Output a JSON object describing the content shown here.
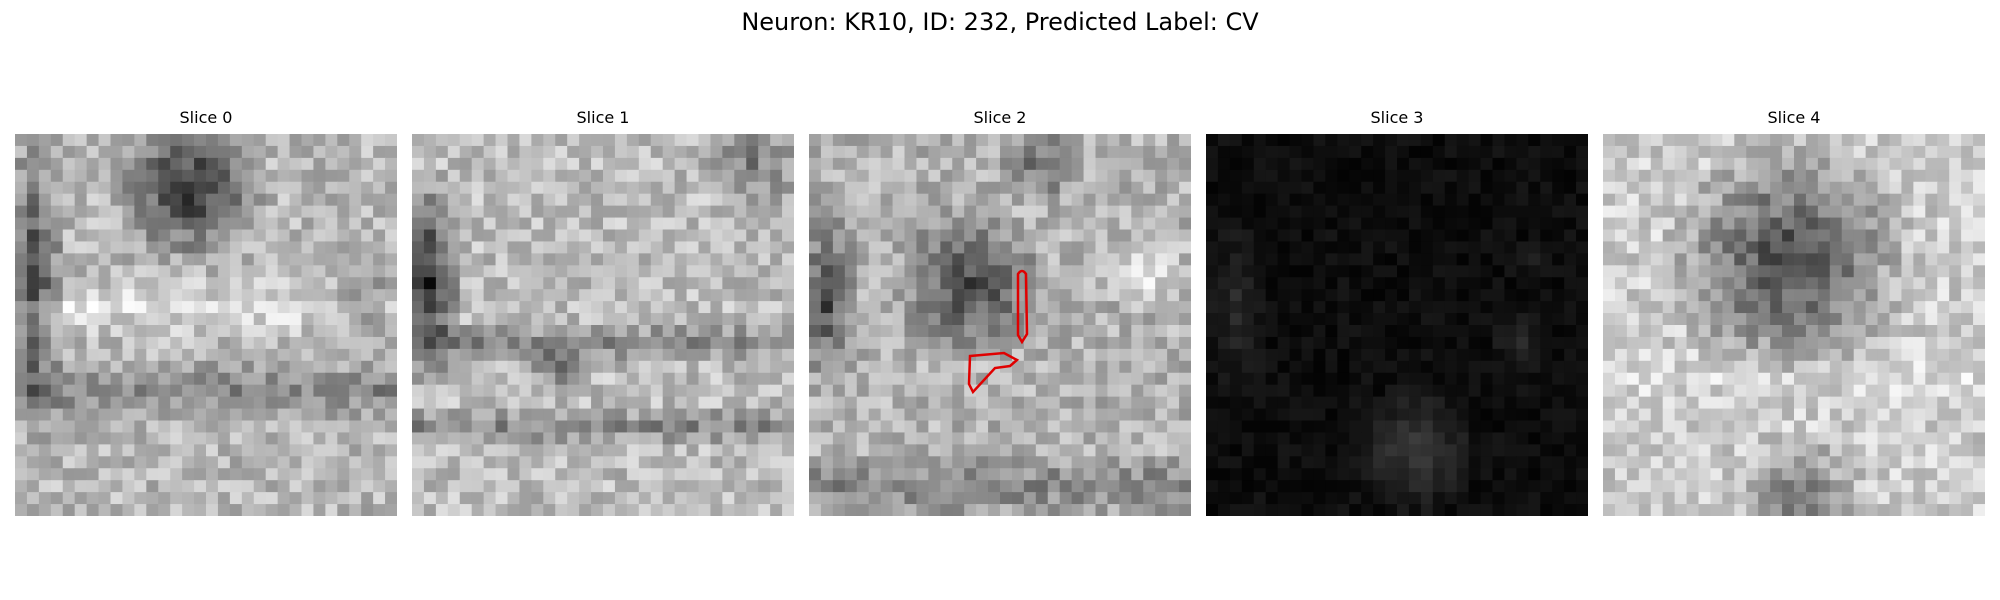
{
  "figure": {
    "title": "Neuron: KR10, ID: 232, Predicted Label: CV"
  },
  "panels": [
    {
      "label": "Slice 0",
      "seed": 11,
      "style": "light"
    },
    {
      "label": "Slice 1",
      "seed": 23,
      "style": "light"
    },
    {
      "label": "Slice 2",
      "seed": 37,
      "style": "light",
      "has_annotation": true
    },
    {
      "label": "Slice 3",
      "seed": 41,
      "style": "dark"
    },
    {
      "label": "Slice 4",
      "seed": 53,
      "style": "light"
    }
  ],
  "colors": {
    "annotation": "#e00000",
    "background": "#ffffff"
  }
}
